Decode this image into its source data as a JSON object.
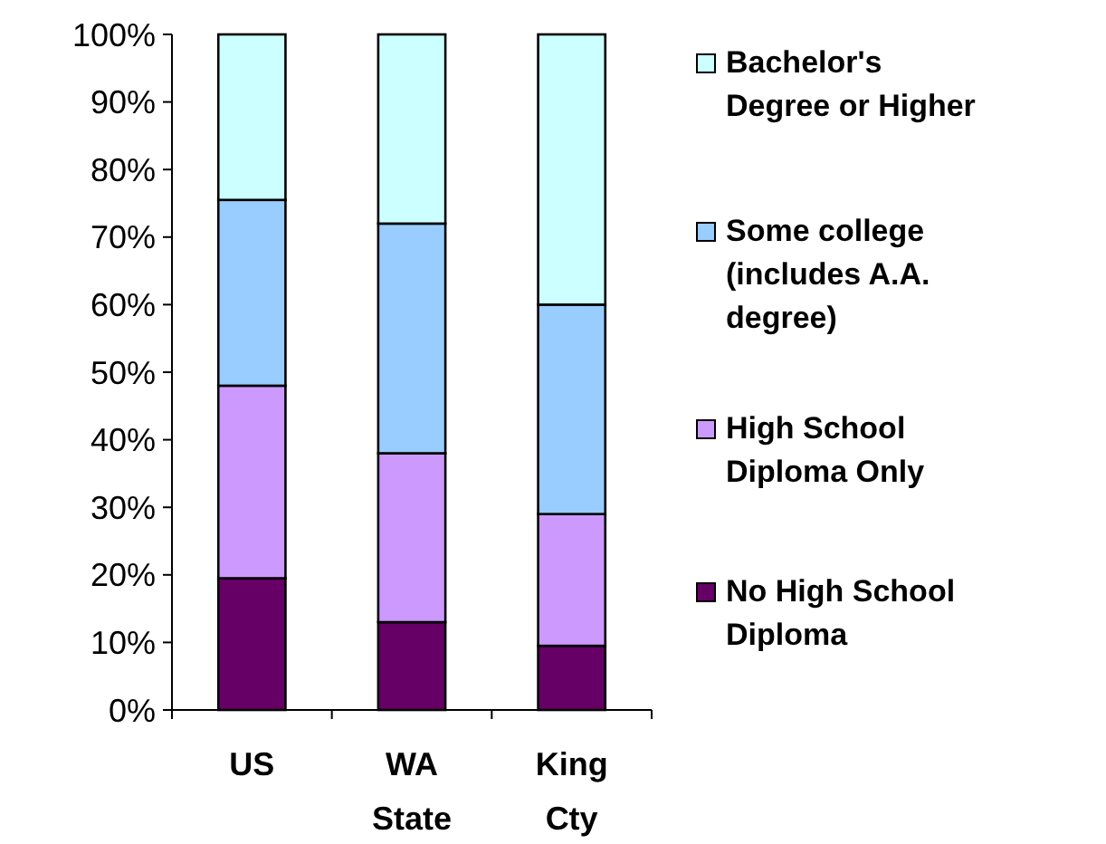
{
  "chart_data": {
    "type": "bar",
    "stacked": true,
    "categories": [
      "US",
      "WA State",
      "King Cty"
    ],
    "series": [
      {
        "name": "No High School Diploma",
        "color": "#660066",
        "values": [
          19.5,
          13,
          9.5
        ]
      },
      {
        "name": "High School Diploma Only",
        "color": "#cc99ff",
        "values": [
          28.5,
          25,
          19.5
        ]
      },
      {
        "name": "Some college (includes A.A. degree)",
        "color": "#99ccff",
        "values": [
          27.5,
          34,
          31
        ]
      },
      {
        "name": "Bachelor's Degree or Higher",
        "color": "#ccffff",
        "values": [
          24.5,
          28,
          40
        ]
      }
    ],
    "ylim": [
      0,
      100
    ],
    "yticks": [
      {
        "value": 0,
        "label": "0%"
      },
      {
        "value": 10,
        "label": "10%"
      },
      {
        "value": 20,
        "label": "20%"
      },
      {
        "value": 30,
        "label": "30%"
      },
      {
        "value": 40,
        "label": "40%"
      },
      {
        "value": 50,
        "label": "50%"
      },
      {
        "value": 60,
        "label": "60%"
      },
      {
        "value": 70,
        "label": "70%"
      },
      {
        "value": 80,
        "label": "80%"
      },
      {
        "value": 90,
        "label": "90%"
      },
      {
        "value": 100,
        "label": "100%"
      }
    ],
    "grid": false,
    "legend": "right"
  }
}
